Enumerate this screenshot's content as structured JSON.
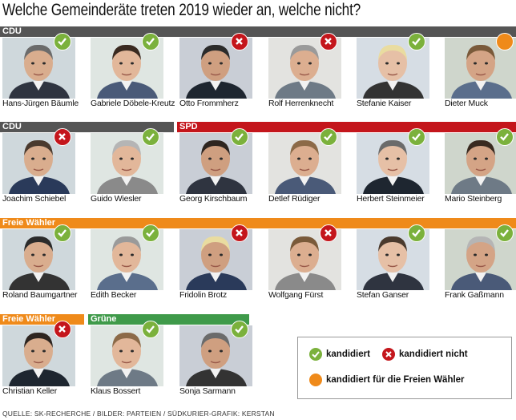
{
  "title": "Welche Gemeinderäte treten 2019 wieder an, welche nicht?",
  "colors": {
    "CDU": "#555555",
    "SPD": "#c4161c",
    "FW": "#ef8a1a",
    "Gruene": "#3f9a4a",
    "green": "#7bb13c",
    "red": "#c4161c",
    "orange": "#ef8a1a"
  },
  "party_bars": [
    {
      "label": "CDU"
    },
    {
      "label": "CDU"
    },
    {
      "label": "SPD"
    },
    {
      "label": "Freie Wähler"
    },
    {
      "label": "Freie Wähler"
    },
    {
      "label": "Grüne"
    }
  ],
  "people": [
    {
      "name": "Hans-Jürgen Bäumle",
      "status": "kandidiert"
    },
    {
      "name": "Gabriele Döbele-Kreutz",
      "status": "kandidiert"
    },
    {
      "name": "Otto Frommherz",
      "status": "kandidiert nicht"
    },
    {
      "name": "Rolf Herrenknecht",
      "status": "kandidiert nicht"
    },
    {
      "name": "Stefanie Kaiser",
      "status": "kandidiert"
    },
    {
      "name": "Dieter Muck",
      "status": "kandidiert für die Freien Wähler"
    },
    {
      "name": "Joachim Schiebel",
      "status": "kandidiert nicht"
    },
    {
      "name": "Guido Wiesler",
      "status": "kandidiert"
    },
    {
      "name": "Georg Kirschbaum",
      "status": "kandidiert"
    },
    {
      "name": "Detlef Rüdiger",
      "status": "kandidiert"
    },
    {
      "name": "Herbert Steinmeier",
      "status": "kandidiert"
    },
    {
      "name": "Mario Steinberg",
      "status": "kandidiert"
    },
    {
      "name": "Roland Baumgartner",
      "status": "kandidiert"
    },
    {
      "name": "Edith Becker",
      "status": "kandidiert"
    },
    {
      "name": "Fridolin Brotz",
      "status": "kandidiert nicht"
    },
    {
      "name": "Wolfgang Fürst",
      "status": "kandidiert nicht"
    },
    {
      "name": "Stefan Ganser",
      "status": "kandidiert"
    },
    {
      "name": "Frank Gaßmann",
      "status": "kandidiert"
    },
    {
      "name": "Christian Keller",
      "status": "kandidiert nicht"
    },
    {
      "name": "Klaus Bossert",
      "status": "kandidiert"
    },
    {
      "name": "Sonja Sarmann",
      "status": "kandidiert"
    }
  ],
  "legend": {
    "yes": "kandidiert",
    "no": "kandidiert nicht",
    "fw": "kandidiert für die Freien Wähler"
  },
  "source": "QUELLE: SK-RECHERCHE / BILDER: PARTEIEN / SÜDKURIER-GRAFIK: KERSTAN"
}
